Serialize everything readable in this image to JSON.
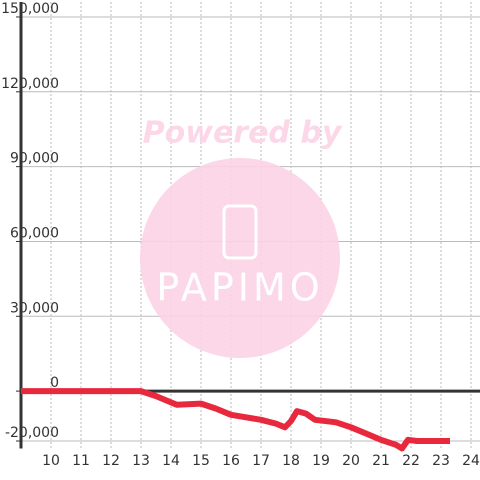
{
  "chart_data": {
    "type": "line",
    "x": [
      9.0,
      13.0,
      13.5,
      14.0,
      14.2,
      15.0,
      15.5,
      16.0,
      16.5,
      17.0,
      17.5,
      17.8,
      18.0,
      18.2,
      18.5,
      18.8,
      19.5,
      20.0,
      20.5,
      21.0,
      21.5,
      21.7,
      21.9,
      22.2,
      23.3
    ],
    "series": [
      {
        "color": "#e8283c",
        "values": [
          0,
          0,
          -2000,
          -4500,
          -5500,
          -5000,
          -7000,
          -9500,
          -10500,
          -11500,
          -13000,
          -14500,
          -12000,
          -8000,
          -9000,
          -11500,
          -12500,
          -14500,
          -17000,
          -19500,
          -21500,
          -23000,
          -19500,
          -20000,
          -20000
        ]
      }
    ],
    "xlim": [
      9,
      24.3
    ],
    "xticks": [
      10,
      11,
      12,
      13,
      14,
      15,
      16,
      17,
      18,
      19,
      20,
      21,
      22,
      23,
      24
    ],
    "ylim": [
      -23000,
      156000
    ],
    "yticks": [
      {
        "value": -20000,
        "label": "-20,000"
      },
      0,
      {
        "value": 30000,
        "label": "30,000"
      },
      {
        "value": 60000,
        "label": "60,000"
      },
      {
        "value": 90000,
        "label": "90,000"
      },
      {
        "value": 120000,
        "label": "120,000"
      },
      {
        "value": 150000,
        "label": "150,000"
      }
    ],
    "grid": true,
    "watermark": {
      "line1": "Powered by",
      "line2": "PAPIMO"
    }
  }
}
